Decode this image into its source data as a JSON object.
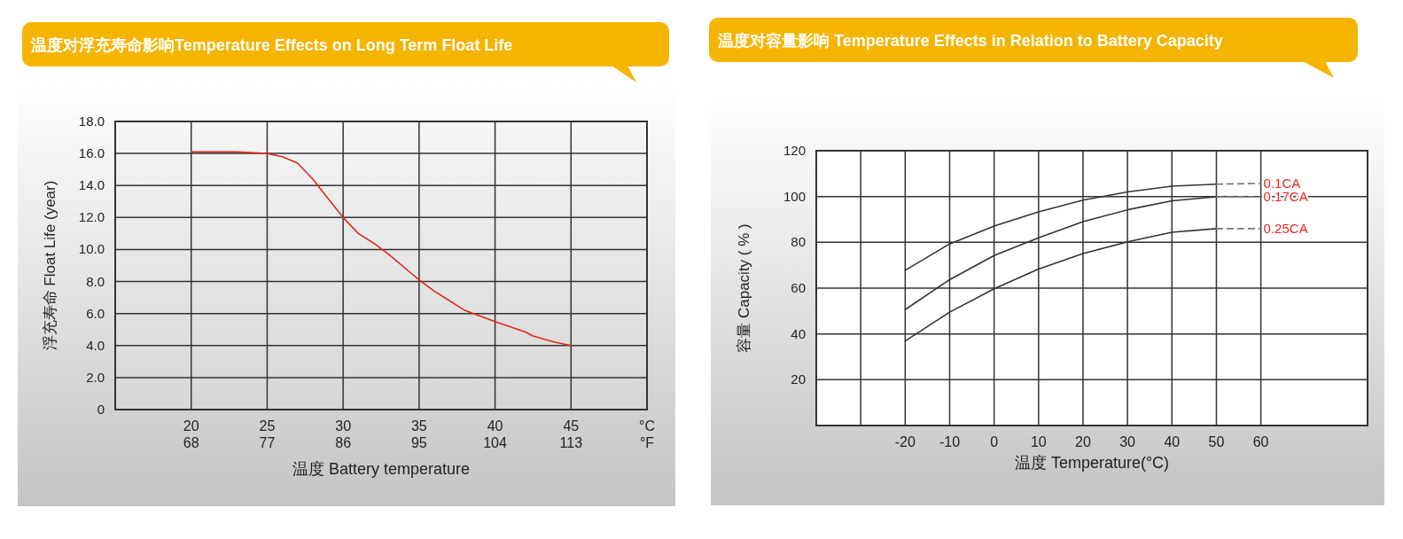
{
  "chart_data": [
    {
      "type": "line",
      "title": "温度对浮充寿命影响Temperature Effects on Long Term Float Life",
      "xlabel": "温度  Battery temperature",
      "ylabel": "浮充寿命  Float Life (year)",
      "xlim": [
        15,
        50
      ],
      "xticks": [
        {
          "value": 15,
          "label": null
        },
        20,
        25,
        30,
        35,
        40,
        45,
        {
          "value": 50,
          "label": "°C"
        }
      ],
      "x2lim": [
        59,
        122
      ],
      "x2ticks": [
        68,
        77,
        86,
        95,
        104,
        113,
        {
          "value": 122,
          "label": "°F"
        }
      ],
      "ylim": [
        0,
        18
      ],
      "yticks": [
        0,
        {
          "value": 2,
          "label": "2.0"
        },
        {
          "value": 4,
          "label": "4.0"
        },
        {
          "value": 6,
          "label": "6.0"
        },
        {
          "value": 8,
          "label": "8.0"
        },
        {
          "value": 10,
          "label": "10.0"
        },
        {
          "value": 12,
          "label": "12.0"
        },
        {
          "value": 14,
          "label": "14.0"
        },
        {
          "value": 16,
          "label": "16.0"
        },
        {
          "value": 18,
          "label": "18.0"
        }
      ],
      "grid": true,
      "series": [
        {
          "color": "#e0281c",
          "x": [
            20,
            23,
            25,
            26,
            27,
            28,
            29,
            30,
            31,
            32,
            33,
            35,
            36,
            37.5,
            38,
            40,
            42,
            42.5,
            44,
            45
          ],
          "values": [
            16.1,
            16.1,
            16.0,
            15.8,
            15.4,
            14.4,
            13.2,
            12.0,
            11.0,
            10.4,
            9.7,
            8.1,
            7.4,
            6.5,
            6.2,
            5.5,
            4.85,
            4.6,
            4.2,
            4.0
          ]
        }
      ]
    },
    {
      "type": "line",
      "title": "温度对容量影响 Temperature Effects in Relation to Battery Capacity",
      "xlabel": "温度  Temperature(°C)",
      "ylabel": "容量 Capacity ( % )",
      "xlim": [
        -40,
        84
      ],
      "xticks": [
        {
          "value": -40,
          "label": null
        },
        {
          "value": -30,
          "label": null
        },
        -20,
        -10,
        0,
        10,
        20,
        30,
        40,
        50,
        60
      ],
      "ylim": [
        0,
        120
      ],
      "yticks": [
        20,
        40,
        60,
        80,
        100,
        120
      ],
      "grid": true,
      "series": [
        {
          "color": "#333333",
          "x": [
            -20,
            -10,
            0,
            10,
            20,
            30,
            40,
            50
          ],
          "values": [
            67.8,
            79.3,
            87.1,
            93.3,
            98.4,
            102,
            104.5,
            105.4
          ]
        },
        {
          "color": "#333333",
          "x": [
            -20,
            -10,
            0,
            10,
            20,
            30,
            40,
            50
          ],
          "values": [
            50.6,
            63.7,
            74.2,
            82,
            89,
            94.2,
            98.1,
            99.9
          ]
        },
        {
          "color": "#333333",
          "x": [
            -20,
            -10,
            0,
            10,
            20,
            30,
            40,
            50
          ],
          "values": [
            36.9,
            49.5,
            59.7,
            68.3,
            75.1,
            80.2,
            84.4,
            86
          ]
        },
        {
          "name": "0.1CA",
          "color": "#777777",
          "line_style": "dashed",
          "x": [
            50,
            60
          ],
          "values": [
            105.4,
            105.7
          ]
        },
        {
          "name": "0.17CA",
          "color": "#777777",
          "line_style": "dashed",
          "x": [
            50,
            60
          ],
          "values": [
            99.9,
            100
          ]
        },
        {
          "name": "0.25CA",
          "color": "#777777",
          "line_style": "dashed",
          "x": [
            50,
            60
          ],
          "values": [
            86,
            86
          ]
        }
      ]
    }
  ]
}
